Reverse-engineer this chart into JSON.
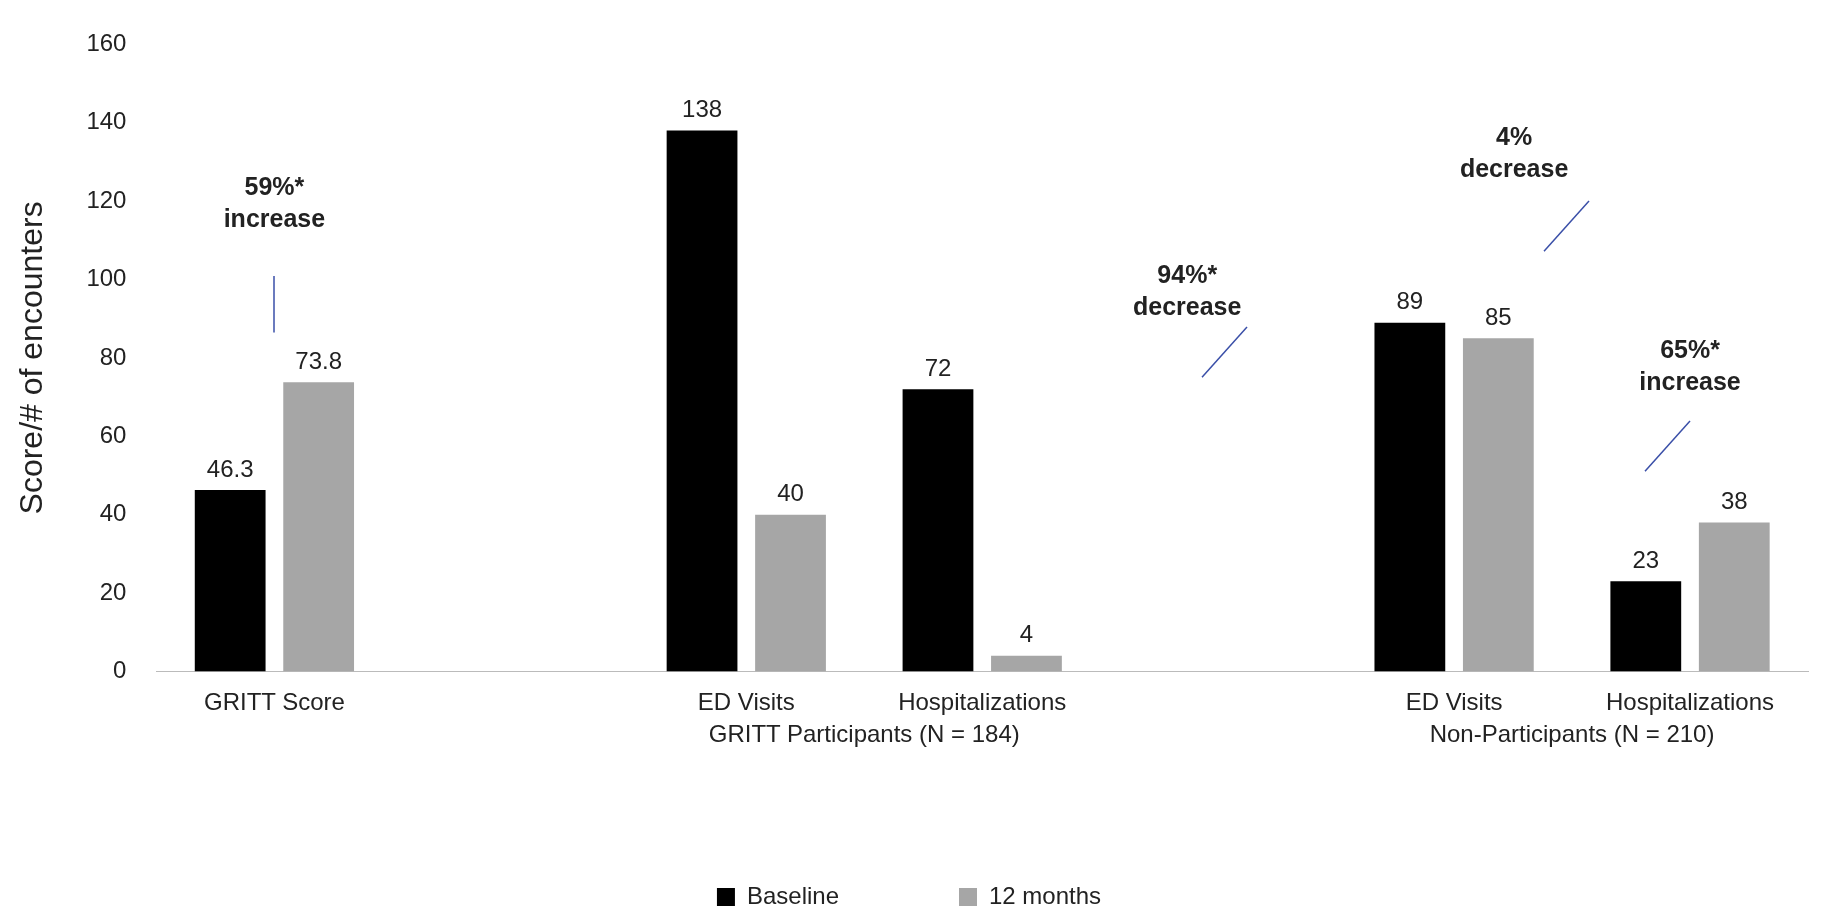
{
  "chart_data": {
    "type": "bar",
    "categories": [
      "GRITT Score",
      null,
      "ED Visits",
      "Hospitalizations",
      null,
      "ED Visits",
      "Hospitalizations"
    ],
    "series": [
      {
        "name": "Baseline",
        "color": "#000000",
        "values": [
          46.3,
          null,
          138,
          72,
          null,
          89,
          23
        ]
      },
      {
        "name": "12 months",
        "color": "#a6a6a6",
        "values": [
          73.8,
          null,
          40,
          4,
          null,
          85,
          38
        ]
      }
    ],
    "ylabel": "Score/# of encounters",
    "ylim": [
      0,
      160
    ],
    "yticks": [
      0,
      20,
      40,
      60,
      80,
      100,
      120,
      140,
      160
    ],
    "grid": false,
    "legend": "bottom",
    "data_labels": true,
    "annotations": [
      "59%* increase",
      "94%* decrease",
      "4% decrease",
      "65%* increase",
      "GRITT Participants (N = 184)",
      "Non-Participants (N = 210)"
    ]
  }
}
